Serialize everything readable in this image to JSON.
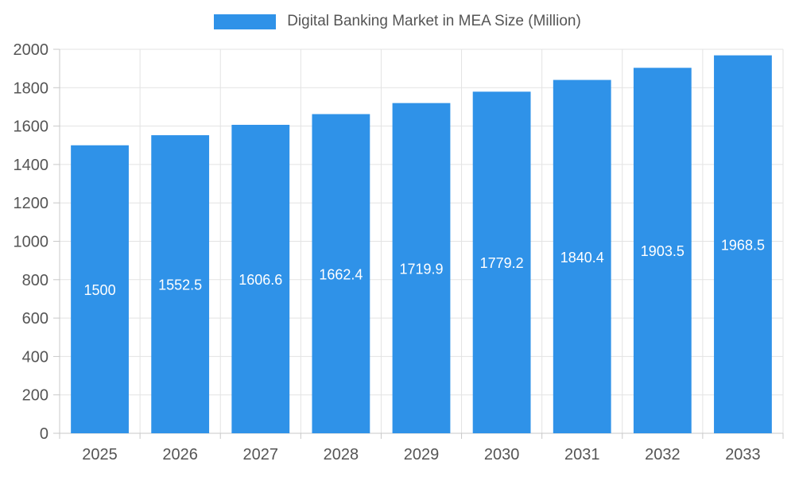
{
  "chart_data": {
    "type": "bar",
    "title": "Digital Banking Market in MEA Size (Million)",
    "categories": [
      "2025",
      "2026",
      "2027",
      "2028",
      "2029",
      "2030",
      "2031",
      "2032",
      "2033"
    ],
    "values": [
      1500,
      1552.5,
      1606.6,
      1662.4,
      1719.9,
      1779.2,
      1840.4,
      1903.5,
      1968.5
    ],
    "value_labels": [
      "1500",
      "1552.5",
      "1606.6",
      "1662.4",
      "1719.9",
      "1779.2",
      "1840.4",
      "1903.5",
      "1968.5"
    ],
    "xlabel": "",
    "ylabel": "",
    "ylim": [
      0,
      2000
    ],
    "ytick_step": 200,
    "ytick_labels": [
      "0",
      "200",
      "400",
      "600",
      "800",
      "1000",
      "1200",
      "1400",
      "1600",
      "1800",
      "2000"
    ],
    "grid": true,
    "legend_position": "top",
    "colors": {
      "bar": "#2f92e8",
      "bar_value_text": "#ffffff",
      "axis_line": "#c8c8c8",
      "grid_line": "#e3e3e3",
      "axis_text": "#555555",
      "title_text": "#555555"
    }
  }
}
